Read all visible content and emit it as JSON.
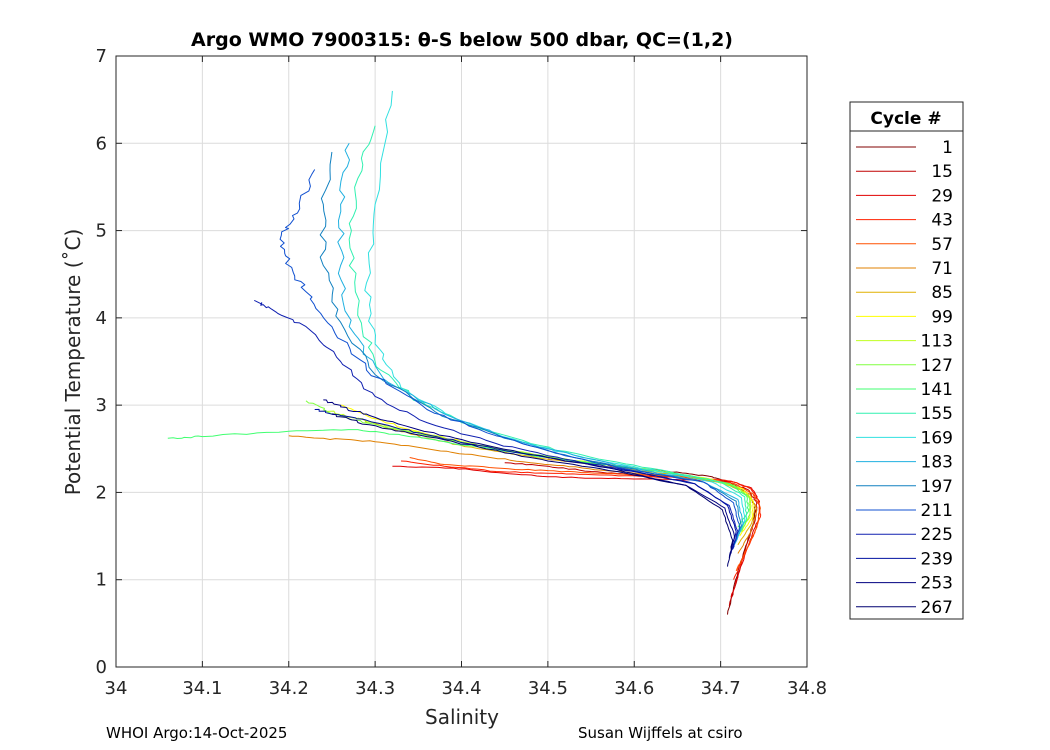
{
  "chart_data": {
    "type": "line",
    "title": "Argo WMO 7900315: θ-S below 500 dbar,  QC=(1,2)",
    "xlabel": "Salinity",
    "ylabel": "Potential Temperature (˚C)",
    "xlim": [
      34.0,
      34.8
    ],
    "ylim": [
      0,
      7
    ],
    "xticks": [
      "34",
      "34.1",
      "34.2",
      "34.3",
      "34.4",
      "34.5",
      "34.6",
      "34.7",
      "34.8"
    ],
    "yticks": [
      "0",
      "1",
      "2",
      "3",
      "4",
      "5",
      "6",
      "7"
    ],
    "grid": true,
    "legend": {
      "title": "Cycle #",
      "placement": "outside-right",
      "entries": [
        {
          "label": "1",
          "color": "#800000"
        },
        {
          "label": "15",
          "color": "#c00000"
        },
        {
          "label": "29",
          "color": "#e00000"
        },
        {
          "label": "43",
          "color": "#ff2000"
        },
        {
          "label": "57",
          "color": "#ff5000"
        },
        {
          "label": "71",
          "color": "#e08000"
        },
        {
          "label": "85",
          "color": "#e0b000"
        },
        {
          "label": "99",
          "color": "#ffff00"
        },
        {
          "label": "113",
          "color": "#c0ff20"
        },
        {
          "label": "127",
          "color": "#80ff40"
        },
        {
          "label": "141",
          "color": "#40ff70"
        },
        {
          "label": "155",
          "color": "#30f0b0"
        },
        {
          "label": "169",
          "color": "#30e0e0"
        },
        {
          "label": "183",
          "color": "#20b0e0"
        },
        {
          "label": "197",
          "color": "#1080c0"
        },
        {
          "label": "211",
          "color": "#1050d0"
        },
        {
          "label": "225",
          "color": "#1020b0"
        },
        {
          "label": "239",
          "color": "#0010a0"
        },
        {
          "label": "253",
          "color": "#000080"
        },
        {
          "label": "267",
          "color": "#000070"
        }
      ]
    },
    "series": [
      {
        "name": "1",
        "color": "#800000",
        "x": [
          34.708,
          34.716,
          34.728,
          34.738,
          34.74,
          34.73,
          34.71,
          34.69,
          34.66,
          34.62,
          34.58,
          34.54,
          34.5
        ],
        "y": [
          0.6,
          0.95,
          1.35,
          1.65,
          1.85,
          2.0,
          2.12,
          2.18,
          2.22,
          2.26,
          2.3,
          2.34,
          2.38
        ]
      },
      {
        "name": "15",
        "color": "#c00000",
        "x": [
          34.71,
          34.72,
          34.73,
          34.74,
          34.742,
          34.732,
          34.71,
          34.68,
          34.64,
          34.6,
          34.55,
          34.5,
          34.45
        ],
        "y": [
          0.7,
          1.05,
          1.4,
          1.68,
          1.88,
          2.03,
          2.12,
          2.15,
          2.18,
          2.2,
          2.24,
          2.3,
          2.34
        ]
      },
      {
        "name": "29",
        "color": "#e00000",
        "x": [
          34.712,
          34.722,
          34.734,
          34.744,
          34.745,
          34.736,
          34.715,
          34.68,
          34.63,
          34.57,
          34.5,
          34.45,
          34.39,
          34.32
        ],
        "y": [
          0.8,
          1.1,
          1.45,
          1.7,
          1.9,
          2.05,
          2.12,
          2.14,
          2.15,
          2.16,
          2.18,
          2.22,
          2.28,
          2.3
        ]
      },
      {
        "name": "43",
        "color": "#ff2000",
        "x": [
          34.715,
          34.726,
          34.738,
          34.746,
          34.744,
          34.735,
          34.712,
          34.68,
          34.62,
          34.56,
          34.5,
          34.44,
          34.38,
          34.33
        ],
        "y": [
          1.0,
          1.25,
          1.5,
          1.72,
          1.9,
          2.04,
          2.13,
          2.16,
          2.18,
          2.2,
          2.22,
          2.24,
          2.3,
          2.36
        ]
      },
      {
        "name": "57",
        "color": "#ff5000",
        "x": [
          34.718,
          34.73,
          34.742,
          34.746,
          34.738,
          34.715,
          34.68,
          34.62,
          34.56,
          34.5,
          34.44,
          34.38,
          34.34
        ],
        "y": [
          1.1,
          1.35,
          1.6,
          1.82,
          1.98,
          2.1,
          2.16,
          2.2,
          2.22,
          2.25,
          2.28,
          2.32,
          2.4
        ]
      },
      {
        "name": "71",
        "color": "#e08000",
        "x": [
          34.72,
          34.735,
          34.742,
          34.734,
          34.71,
          34.66,
          34.6,
          34.54,
          34.48,
          34.42,
          34.36,
          34.3,
          34.24,
          34.2
        ],
        "y": [
          1.3,
          1.55,
          1.8,
          1.98,
          2.1,
          2.18,
          2.22,
          2.28,
          2.34,
          2.42,
          2.5,
          2.58,
          2.62,
          2.65
        ]
      },
      {
        "name": "85",
        "color": "#e0b000",
        "x": [
          34.72,
          34.736,
          34.74,
          34.73,
          34.7,
          34.65,
          34.58,
          34.5,
          34.42,
          34.36,
          34.31,
          34.28
        ],
        "y": [
          1.4,
          1.65,
          1.85,
          2.0,
          2.12,
          2.2,
          2.28,
          2.38,
          2.5,
          2.62,
          2.75,
          2.85
        ]
      },
      {
        "name": "99",
        "color": "#ffff00",
        "x": [
          34.722,
          34.736,
          34.738,
          34.726,
          34.69,
          34.63,
          34.56,
          34.48,
          34.4,
          34.34,
          34.29,
          34.26
        ],
        "y": [
          1.5,
          1.7,
          1.9,
          2.04,
          2.15,
          2.24,
          2.32,
          2.44,
          2.58,
          2.72,
          2.88,
          3.0
        ]
      },
      {
        "name": "113",
        "color": "#c0ff20",
        "x": [
          34.722,
          34.734,
          34.735,
          34.72,
          34.68,
          34.62,
          34.55,
          34.47,
          34.39,
          34.33,
          34.28,
          34.24
        ],
        "y": [
          1.55,
          1.72,
          1.92,
          2.06,
          2.17,
          2.26,
          2.34,
          2.46,
          2.6,
          2.72,
          2.85,
          2.95
        ]
      },
      {
        "name": "127",
        "color": "#80ff40",
        "x": [
          34.724,
          34.734,
          34.733,
          34.716,
          34.67,
          34.6,
          34.52,
          34.44,
          34.36,
          34.3,
          34.25,
          34.22
        ],
        "y": [
          1.55,
          1.75,
          1.95,
          2.08,
          2.18,
          2.28,
          2.38,
          2.5,
          2.65,
          2.78,
          2.9,
          3.05
        ]
      },
      {
        "name": "141",
        "color": "#40ff70",
        "x": [
          34.72,
          34.732,
          34.73,
          34.71,
          34.66,
          34.58,
          34.5,
          34.42,
          34.34,
          34.28,
          34.2,
          34.1,
          34.06
        ],
        "y": [
          1.6,
          1.78,
          1.96,
          2.1,
          2.2,
          2.3,
          2.4,
          2.52,
          2.64,
          2.72,
          2.7,
          2.64,
          2.62
        ]
      },
      {
        "name": "155",
        "color": "#30f0b0",
        "x": [
          34.72,
          34.73,
          34.728,
          34.7,
          34.64,
          34.56,
          34.48,
          34.4,
          34.34,
          34.3,
          34.28,
          34.27,
          34.28,
          34.3
        ],
        "y": [
          1.5,
          1.7,
          1.95,
          2.12,
          2.24,
          2.38,
          2.56,
          2.8,
          3.1,
          3.5,
          4.1,
          4.9,
          5.6,
          6.2
        ]
      },
      {
        "name": "169",
        "color": "#30e0e0",
        "x": [
          34.718,
          34.728,
          34.724,
          34.69,
          34.63,
          34.55,
          34.47,
          34.39,
          34.33,
          34.3,
          34.29,
          34.3,
          34.32
        ],
        "y": [
          1.45,
          1.68,
          1.94,
          2.12,
          2.24,
          2.38,
          2.58,
          2.86,
          3.2,
          3.7,
          4.4,
          5.3,
          6.6
        ]
      },
      {
        "name": "183",
        "color": "#20b0e0",
        "x": [
          34.716,
          34.726,
          34.72,
          34.68,
          34.62,
          34.54,
          34.46,
          34.38,
          34.31,
          34.27,
          34.26,
          34.26,
          34.27
        ],
        "y": [
          1.4,
          1.65,
          1.92,
          2.12,
          2.24,
          2.4,
          2.6,
          2.9,
          3.3,
          3.9,
          4.6,
          5.3,
          6.0
        ]
      },
      {
        "name": "197",
        "color": "#1080c0",
        "x": [
          34.715,
          34.724,
          34.718,
          34.68,
          34.61,
          34.53,
          34.45,
          34.37,
          34.3,
          34.26,
          34.24,
          34.24,
          34.25
        ],
        "y": [
          1.4,
          1.62,
          1.9,
          2.12,
          2.24,
          2.4,
          2.62,
          2.92,
          3.35,
          3.95,
          4.6,
          5.3,
          5.9
        ]
      },
      {
        "name": "211",
        "color": "#1050d0",
        "x": [
          34.714,
          34.722,
          34.715,
          34.68,
          34.6,
          34.52,
          34.44,
          34.36,
          34.29,
          34.25,
          34.22,
          34.2,
          34.19,
          34.21,
          34.23
        ],
        "y": [
          1.35,
          1.6,
          1.88,
          2.12,
          2.25,
          2.42,
          2.65,
          2.95,
          3.4,
          3.9,
          4.3,
          4.6,
          4.9,
          5.2,
          5.7
        ]
      },
      {
        "name": "225",
        "color": "#1020b0",
        "x": [
          34.712,
          34.72,
          34.71,
          34.67,
          34.6,
          34.52,
          34.44,
          34.36,
          34.3,
          34.26,
          34.22,
          34.18,
          34.16
        ],
        "y": [
          1.3,
          1.55,
          1.85,
          2.1,
          2.24,
          2.38,
          2.56,
          2.8,
          3.1,
          3.5,
          3.9,
          4.1,
          4.2
        ]
      },
      {
        "name": "239",
        "color": "#0010a0",
        "x": [
          34.712,
          34.718,
          34.708,
          34.67,
          34.6,
          34.52,
          34.44,
          34.36,
          34.3,
          34.26,
          34.23
        ],
        "y": [
          1.3,
          1.55,
          1.85,
          2.1,
          2.24,
          2.36,
          2.5,
          2.66,
          2.8,
          2.88,
          2.95
        ]
      },
      {
        "name": "253",
        "color": "#000080",
        "x": [
          34.71,
          34.716,
          34.705,
          34.66,
          34.58,
          34.5,
          34.42,
          34.35,
          34.3,
          34.26,
          34.24
        ],
        "y": [
          1.25,
          1.5,
          1.82,
          2.08,
          2.26,
          2.4,
          2.56,
          2.72,
          2.86,
          2.98,
          3.06
        ]
      },
      {
        "name": "267",
        "color": "#000070",
        "x": [
          34.708,
          34.714,
          34.702,
          34.66,
          34.58,
          34.5,
          34.42,
          34.34,
          34.28,
          34.25
        ],
        "y": [
          1.15,
          1.45,
          1.8,
          2.08,
          2.24,
          2.36,
          2.52,
          2.68,
          2.8,
          2.9
        ]
      }
    ]
  },
  "footer": {
    "left": "WHOI Argo:14-Oct-2025",
    "right": "Susan Wijffels at csiro"
  }
}
